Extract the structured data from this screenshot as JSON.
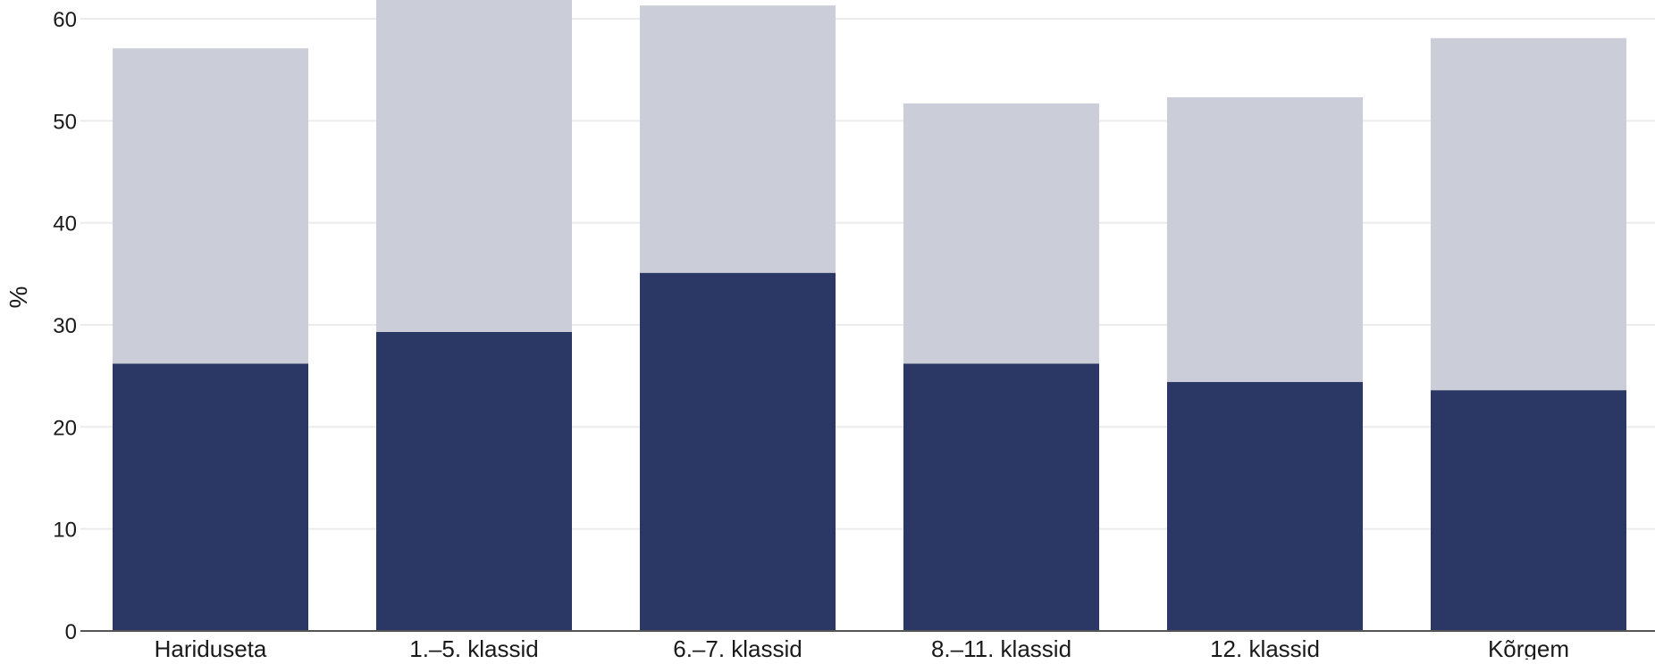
{
  "chart_data": {
    "type": "bar",
    "stacked": true,
    "categories": [
      "Hariduseta",
      "1.–5. klassid",
      "6.–7. klassid",
      "8.–11. klassid",
      "12. klassid",
      "Kõrgem"
    ],
    "series": [
      {
        "values": [
          26.2,
          29.3,
          35.1,
          26.2,
          24.4,
          23.6
        ],
        "color": "#2b3765"
      },
      {
        "values": [
          30.9,
          35.0,
          26.2,
          25.5,
          27.9,
          34.5
        ],
        "color": "#cbcdd9"
      }
    ],
    "ylabel": "%",
    "yticks": [
      0,
      10,
      20,
      30,
      40,
      50,
      60
    ],
    "ylim": [
      0,
      60
    ],
    "grid": true,
    "legend": "none"
  }
}
